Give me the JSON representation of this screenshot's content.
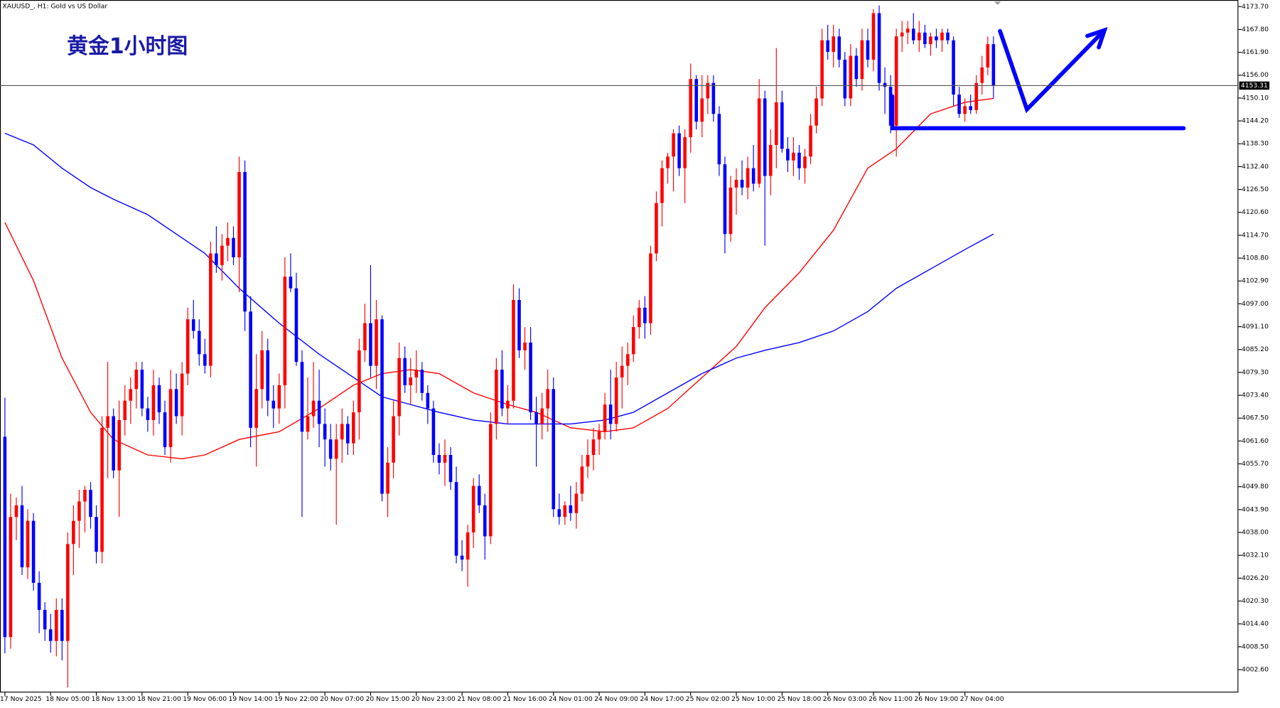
{
  "chart_data": {
    "type": "candlestick",
    "title": "XAUUSD_, H1:  Gold vs US Dollar",
    "annotation": "黄金1小时图",
    "up_color": "#ff0000",
    "down_color": "#0000ff",
    "ylim": [
      3996.7,
      4175.4
    ],
    "yticks": [
      {
        "value": 4173.7,
        "label": "4173.70"
      },
      {
        "value": 4167.8,
        "label": "4167.80"
      },
      {
        "value": 4161.9,
        "label": "4161.90"
      },
      {
        "value": 4156.0,
        "label": "4156.00"
      },
      {
        "value": 4150.1,
        "label": "4150.10"
      },
      {
        "value": 4144.2,
        "label": "4144.20"
      },
      {
        "value": 4138.3,
        "label": "4138.30"
      },
      {
        "value": 4132.4,
        "label": "4132.40"
      },
      {
        "value": 4126.5,
        "label": "4126.50"
      },
      {
        "value": 4120.6,
        "label": "4120.60"
      },
      {
        "value": 4114.7,
        "label": "4114.70"
      },
      {
        "value": 4108.8,
        "label": "4108.80"
      },
      {
        "value": 4102.9,
        "label": "4102.90"
      },
      {
        "value": 4097.0,
        "label": "4097.00"
      },
      {
        "value": 4091.1,
        "label": "4091.10"
      },
      {
        "value": 4085.2,
        "label": "4085.20"
      },
      {
        "value": 4079.3,
        "label": "4079.30"
      },
      {
        "value": 4073.4,
        "label": "4073.40"
      },
      {
        "value": 4067.5,
        "label": "4067.50"
      },
      {
        "value": 4061.6,
        "label": "4061.60"
      },
      {
        "value": 4055.7,
        "label": "4055.70"
      },
      {
        "value": 4049.8,
        "label": "4049.80"
      },
      {
        "value": 4043.9,
        "label": "4043.90"
      },
      {
        "value": 4038.0,
        "label": "4038.00"
      },
      {
        "value": 4032.1,
        "label": "4032.10"
      },
      {
        "value": 4026.2,
        "label": "4026.20"
      },
      {
        "value": 4020.3,
        "label": "4020.30"
      },
      {
        "value": 4014.4,
        "label": "4014.40"
      },
      {
        "value": 4008.5,
        "label": "4008.50"
      },
      {
        "value": 4002.6,
        "label": "4002.60"
      }
    ],
    "last_price": 4153.31,
    "categories": [
      "17 Nov 2025",
      null,
      null,
      null,
      null,
      null,
      null,
      null,
      "18 Nov 05:00",
      null,
      null,
      null,
      null,
      null,
      null,
      null,
      "18 Nov 13:00",
      null,
      null,
      null,
      null,
      null,
      null,
      null,
      "18 Nov 21:00",
      null,
      null,
      null,
      null,
      null,
      null,
      null,
      "19 Nov 06:00",
      null,
      null,
      null,
      null,
      null,
      null,
      null,
      "19 Nov 14:00",
      null,
      null,
      null,
      null,
      null,
      null,
      null,
      "19 Nov 22:00",
      null,
      null,
      null,
      null,
      null,
      null,
      null,
      "20 Nov 07:00",
      null,
      null,
      null,
      null,
      null,
      null,
      null,
      "20 Nov 15:00",
      null,
      null,
      null,
      null,
      null,
      null,
      null,
      "20 Nov 23:00",
      null,
      null,
      null,
      null,
      null,
      null,
      null,
      "21 Nov 08:00",
      null,
      null,
      null,
      null,
      null,
      null,
      null,
      "21 Nov 16:00",
      null,
      null,
      null,
      null,
      null,
      null,
      null,
      "24 Nov 01:00",
      null,
      null,
      null,
      null,
      null,
      null,
      null,
      "24 Nov 09:00",
      null,
      null,
      null,
      null,
      null,
      null,
      null,
      "24 Nov 17:00",
      null,
      null,
      null,
      null,
      null,
      null,
      null,
      "25 Nov 02:00",
      null,
      null,
      null,
      null,
      null,
      null,
      null,
      "25 Nov 10:00",
      null,
      null,
      null,
      null,
      null,
      null,
      null,
      "25 Nov 18:00",
      null,
      null,
      null,
      null,
      null,
      null,
      null,
      "26 Nov 03:00",
      null,
      null,
      null,
      null,
      null,
      null,
      null,
      "26 Nov 11:00",
      null,
      null,
      null,
      null,
      null,
      null,
      null,
      "26 Nov 19:00",
      null,
      null,
      null,
      null,
      null,
      null,
      null,
      "27 Nov 04:00",
      null,
      null,
      null,
      null,
      null
    ],
    "open": [
      4062.7,
      4011,
      4042,
      4045,
      4029,
      4041,
      4025,
      4018,
      4013,
      4010,
      4018,
      4010,
      4035,
      4041,
      4046,
      4049,
      4042,
      4033,
      4065,
      4068,
      4054,
      4067,
      4072,
      4075,
      4080,
      4070,
      4067,
      4076,
      4069,
      4060,
      4075,
      4068,
      4079,
      4093,
      4090,
      4084,
      4081,
      4110,
      4107,
      4112,
      4114,
      4109,
      4131,
      4095,
      4065,
      4075,
      4085,
      4072,
      4070,
      4076,
      4104,
      4101,
      4082,
      4064,
      4068,
      4072,
      4066,
      4062,
      4057,
      4062,
      4066,
      4061,
      4069,
      4085,
      4092,
      4081,
      4093,
      4048,
      4056,
      4068,
      4083,
      4076,
      4078,
      4080,
      4074,
      4070,
      4058,
      4056,
      4058,
      4051,
      4032,
      4031,
      4038,
      4050,
      4045,
      4037,
      4066,
      4080,
      4070,
      4072,
      4098,
      4085,
      4087,
      4069,
      4066,
      4070,
      4075,
      4044,
      4042,
      4045,
      4043,
      4048,
      4055,
      4058,
      4062,
      4064,
      4071,
      4066,
      4078,
      4081,
      4084,
      4091,
      4096,
      4092,
      4110,
      4123,
      4132,
      4135,
      4141,
      4132,
      4140,
      4155,
      4144,
      4150,
      4154,
      4146,
      4133,
      4115,
      4127,
      4129,
      4127,
      4132,
      4128,
      4150,
      4130,
      4138,
      4149,
      4137,
      4134,
      4136,
      4132,
      4135,
      4143,
      4150,
      4165,
      4162,
      4166,
      4160,
      4150,
      4161,
      4155,
      4165,
      4160,
      4172,
      4154,
      4153,
      4143,
      4166,
      4167,
      4168,
      4165,
      4167,
      4164,
      4166,
      4165,
      4167,
      4165,
      4151,
      4146,
      4148,
      4147,
      4154,
      4158,
      4164
    ],
    "high": [
      4072.8,
      4048,
      4047,
      4050,
      4044,
      4043,
      4028,
      4020,
      4017,
      4021,
      4021,
      4038,
      4045,
      4049,
      4050,
      4051,
      4045,
      4068,
      4082,
      4070,
      4072,
      4076,
      4078,
      4082,
      4082,
      4073,
      4080,
      4078,
      4072,
      4080,
      4079,
      4082,
      4096,
      4098,
      4093,
      4088,
      4113,
      4117,
      4115,
      4118,
      4117,
      4135,
      4134,
      4099,
      4084,
      4090,
      4088,
      4076,
      4079,
      4109,
      4110,
      4105,
      4085,
      4078,
      4082,
      4080,
      4070,
      4066,
      4066,
      4070,
      4068,
      4072,
      4088,
      4097,
      4107,
      4098,
      4094,
      4060,
      4072,
      4087,
      4086,
      4083,
      4085,
      4082,
      4076,
      4072,
      4061,
      4062,
      4060,
      4055,
      4036,
      4040,
      4052,
      4053,
      4048,
      4069,
      4083,
      4085,
      4076,
      4102,
      4101,
      4091,
      4091,
      4073,
      4074,
      4080,
      4078,
      4048,
      4046,
      4050,
      4051,
      4058,
      4062,
      4065,
      4066,
      4074,
      4080,
      4082,
      4086,
      4087,
      4094,
      4098,
      4099,
      4112,
      4126,
      4134,
      4136,
      4142,
      4143,
      4142,
      4159,
      4156,
      4156,
      4156,
      4156,
      4148,
      4135,
      4130,
      4132,
      4134,
      4135,
      4138,
      4155,
      4152,
      4142,
      4163,
      4152,
      4140,
      4140,
      4138,
      4137,
      4146,
      4153,
      4168,
      4169,
      4169,
      4168,
      4162,
      4164,
      4163,
      4168,
      4168,
      4173,
      4174,
      4158,
      4156,
      4168,
      4170,
      4170,
      4172,
      4170,
      4169,
      4167,
      4168,
      4168,
      4168,
      4166,
      4153,
      4150,
      4151,
      4156,
      4161,
      4166,
      4166
    ],
    "low": [
      4006.8,
      4008,
      4036,
      4027,
      4026,
      4023,
      4012,
      4010,
      4007,
      4006,
      4005,
      3998,
      4027,
      4034,
      4038,
      4039,
      4030,
      4030,
      4052,
      4052,
      4042,
      4063,
      4066,
      4070,
      4068,
      4064,
      4063,
      4066,
      4058,
      4056,
      4066,
      4063,
      4076,
      4088,
      4081,
      4079,
      4078,
      4105,
      4103,
      4108,
      4107,
      4100,
      4090,
      4060,
      4055,
      4070,
      4068,
      4065,
      4066,
      4070,
      4100,
      4081,
      4042,
      4062,
      4065,
      4060,
      4055,
      4054,
      4040,
      4056,
      4058,
      4058,
      4062,
      4082,
      4078,
      4075,
      4046,
      4042,
      4052,
      4063,
      4074,
      4071,
      4074,
      4072,
      4066,
      4056,
      4053,
      4050,
      4049,
      4030,
      4028,
      4024,
      4034,
      4043,
      4031,
      4035,
      4062,
      4068,
      4066,
      4070,
      4083,
      4080,
      4067,
      4055,
      4062,
      4064,
      4042,
      4040,
      4040,
      4041,
      4039,
      4046,
      4052,
      4054,
      4058,
      4062,
      4062,
      4064,
      4070,
      4076,
      4082,
      4088,
      4088,
      4089,
      4108,
      4117,
      4128,
      4126,
      4130,
      4123,
      4136,
      4142,
      4140,
      4146,
      4144,
      4130,
      4110,
      4113,
      4120,
      4125,
      4124,
      4126,
      4127,
      4112,
      4125,
      4132,
      4136,
      4131,
      4130,
      4129,
      4128,
      4133,
      4141,
      4148,
      4160,
      4158,
      4158,
      4148,
      4148,
      4153,
      4152,
      4158,
      4157,
      4152,
      4146,
      4141,
      4135,
      4162,
      4164,
      4164,
      4162,
      4163,
      4161,
      4163,
      4162,
      4164,
      4148,
      4145,
      4144,
      4146,
      4146,
      4151,
      4156,
      4150
    ],
    "close": [
      4011,
      4042,
      4045,
      4029,
      4041,
      4025,
      4018,
      4013,
      4010,
      4018,
      4010,
      4035,
      4041,
      4046,
      4049,
      4042,
      4033,
      4065,
      4068,
      4054,
      4067,
      4072,
      4075,
      4080,
      4070,
      4067,
      4076,
      4069,
      4060,
      4075,
      4068,
      4079,
      4093,
      4090,
      4084,
      4081,
      4110,
      4107,
      4112,
      4114,
      4109,
      4131,
      4095,
      4065,
      4075,
      4085,
      4072,
      4070,
      4076,
      4104,
      4101,
      4082,
      4064,
      4068,
      4072,
      4066,
      4062,
      4057,
      4062,
      4066,
      4061,
      4069,
      4085,
      4092,
      4081,
      4093,
      4048,
      4056,
      4068,
      4083,
      4076,
      4078,
      4080,
      4074,
      4070,
      4058,
      4056,
      4058,
      4051,
      4032,
      4031,
      4038,
      4050,
      4045,
      4037,
      4066,
      4080,
      4070,
      4072,
      4098,
      4085,
      4087,
      4069,
      4066,
      4070,
      4075,
      4044,
      4042,
      4045,
      4043,
      4048,
      4055,
      4058,
      4062,
      4064,
      4071,
      4066,
      4078,
      4081,
      4084,
      4091,
      4096,
      4092,
      4110,
      4123,
      4132,
      4135,
      4141,
      4132,
      4140,
      4155,
      4144,
      4150,
      4154,
      4146,
      4133,
      4115,
      4127,
      4129,
      4127,
      4132,
      4128,
      4150,
      4130,
      4138,
      4149,
      4137,
      4134,
      4136,
      4132,
      4135,
      4143,
      4150,
      4165,
      4162,
      4166,
      4160,
      4150,
      4161,
      4155,
      4165,
      4160,
      4172,
      4154,
      4153,
      4143,
      4166,
      4167,
      4168,
      4165,
      4167,
      4164,
      4166,
      4165,
      4167,
      4165,
      4151,
      4146,
      4148,
      4147,
      4154,
      4158,
      4164,
      4153.31
    ],
    "moving_averages": [
      {
        "color": "#ff0000",
        "x": [
          0,
          5,
          10,
          15,
          19,
          25,
          31,
          35,
          41,
          48,
          55,
          61,
          66,
          71,
          76,
          82,
          88,
          93,
          99,
          105,
          110,
          116,
          122,
          128,
          133,
          139,
          145,
          151,
          156,
          162,
          168,
          173
        ],
        "values": [
          4118,
          4103,
          4083,
          4069,
          4062,
          4058,
          4057,
          4058,
          4062,
          4064,
          4070,
          4076,
          4079,
          4080,
          4079,
          4074,
          4071,
          4069,
          4065,
          4064,
          4065,
          4070,
          4078,
          4086,
          4096,
          4105,
          4116,
          4132,
          4137,
          4146,
          4149,
          4150
        ]
      },
      {
        "color": "#0000ff",
        "x": [
          0,
          5,
          10,
          15,
          19,
          25,
          31,
          35,
          41,
          48,
          55,
          61,
          66,
          71,
          76,
          82,
          88,
          93,
          99,
          105,
          110,
          116,
          122,
          128,
          133,
          139,
          145,
          151,
          156,
          162,
          168,
          173
        ],
        "values": [
          4141,
          4138,
          4132,
          4127,
          4124,
          4120,
          4114,
          4110,
          4101,
          4092,
          4084,
          4078,
          4073,
          4071,
          4069,
          4067,
          4066,
          4066,
          4066,
          4067,
          4069,
          4074,
          4079,
          4083,
          4085,
          4087,
          4090,
          4095,
          4101,
          4106,
          4111,
          4115
        ]
      }
    ]
  }
}
